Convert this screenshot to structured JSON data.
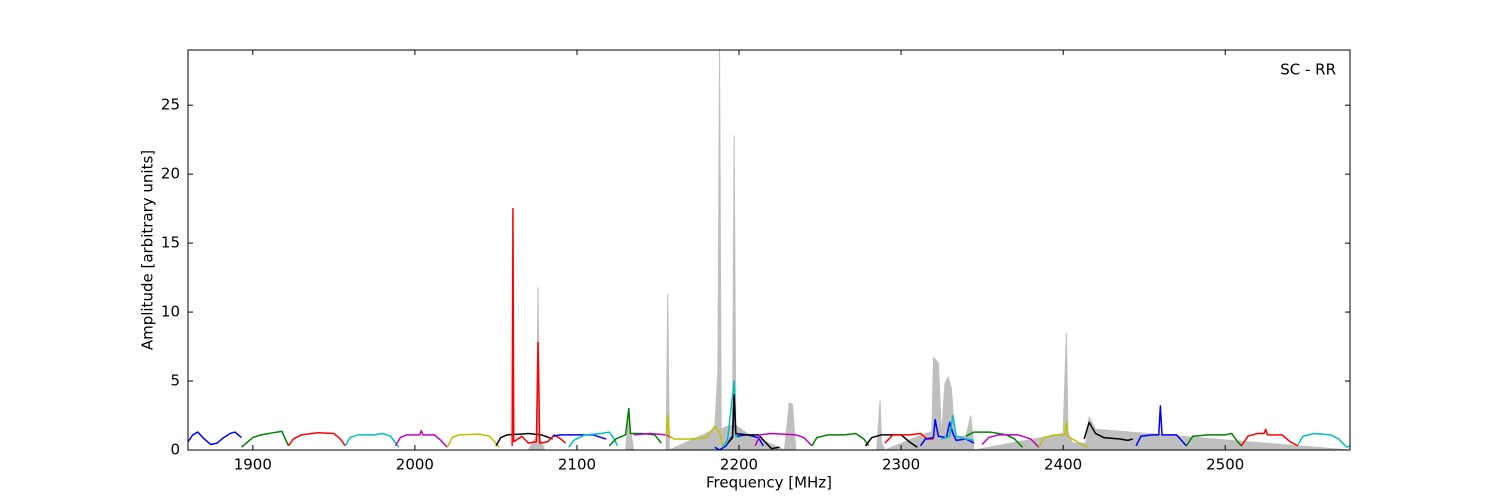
{
  "chart_data": {
    "type": "line",
    "annotation": "SC - RR",
    "xlabel": "Frequency [MHz]",
    "ylabel": "Amplitude [arbitrary units]",
    "xlim": [
      1860,
      2577
    ],
    "ylim": [
      0,
      29
    ],
    "xticks": [
      1900,
      2000,
      2100,
      2200,
      2300,
      2400,
      2500
    ],
    "yticks": [
      0,
      5,
      10,
      15,
      20,
      25
    ],
    "series": [
      {
        "color": "#bfbfbf",
        "fill": true,
        "x": [
          1860,
          2070,
          2075,
          2076,
          2077,
          2080,
          2130,
          2132,
          2133,
          2135,
          2155,
          2156,
          2157,
          2185,
          2187,
          2188,
          2189,
          2192,
          2196,
          2197,
          2198,
          2205,
          2228,
          2231,
          2233,
          2235,
          2285,
          2287,
          2288,
          2290,
          2315,
          2319,
          2320,
          2323,
          2325,
          2327,
          2329,
          2331,
          2333,
          2340,
          2343,
          2345,
          2400,
          2402,
          2403,
          2406,
          2414,
          2416,
          2420,
          2577
        ],
        "values": [
          0,
          0,
          1,
          11.8,
          1,
          0,
          0,
          2.5,
          1.5,
          0,
          0,
          11.3,
          0,
          1.5,
          5.8,
          29,
          1.5,
          1.7,
          1.8,
          22.8,
          1.8,
          1.2,
          0,
          3.4,
          3.3,
          0,
          0,
          3.6,
          0.5,
          0,
          1.2,
          1.3,
          6.7,
          6.3,
          1,
          4.8,
          5.3,
          4.5,
          1,
          1,
          2.5,
          0,
          1.2,
          8.5,
          1.2,
          0.5,
          0.5,
          2.4,
          1.5,
          0
        ]
      },
      {
        "color": "#0000ff",
        "x": [
          1860,
          1863,
          1866,
          1870,
          1874,
          1878,
          1882,
          1886,
          1889,
          1893
        ],
        "values": [
          0.6,
          1.1,
          1.3,
          0.8,
          0.4,
          0.5,
          0.9,
          1.2,
          1.3,
          0.9
        ]
      },
      {
        "color": "#008000",
        "x": [
          1893,
          1896,
          1900,
          1905,
          1915,
          1918,
          1920,
          1922
        ],
        "values": [
          0.2,
          0.5,
          0.9,
          1.1,
          1.3,
          1.35,
          0.8,
          0.3
        ]
      },
      {
        "color": "#ff0000",
        "x": [
          1922,
          1925,
          1930,
          1940,
          1950,
          1954,
          1957
        ],
        "values": [
          0.3,
          0.8,
          1.1,
          1.25,
          1.2,
          0.8,
          0.3
        ]
      },
      {
        "color": "#00bfbf",
        "x": [
          1957,
          1960,
          1965,
          1975,
          1980,
          1985,
          1990
        ],
        "values": [
          0.3,
          0.9,
          1.1,
          1.1,
          1.2,
          1.0,
          0.2
        ]
      },
      {
        "color": "#bf00bf",
        "x": [
          1988,
          1991,
          1995,
          2003,
          2004,
          2005,
          2012,
          2016,
          2020
        ],
        "values": [
          0.3,
          0.9,
          1.1,
          1.1,
          1.4,
          1.1,
          1.1,
          0.7,
          0.2
        ]
      },
      {
        "color": "#bfbf00",
        "x": [
          2020,
          2023,
          2027,
          2040,
          2046,
          2050,
          2052
        ],
        "values": [
          0.2,
          0.9,
          1.1,
          1.15,
          1.0,
          0.5,
          0.2
        ]
      },
      {
        "color": "#000000",
        "x": [
          2050,
          2053,
          2057,
          2065,
          2070,
          2078,
          2085
        ],
        "values": [
          0.3,
          0.9,
          1.1,
          1.15,
          1.2,
          1.1,
          0.8
        ]
      },
      {
        "color": "#ff0000",
        "x": [
          2060,
          2060.5,
          2061,
          2066,
          2070,
          2075,
          2076,
          2077,
          2082,
          2086,
          2090,
          2093
        ],
        "values": [
          0.3,
          17.5,
          0.6,
          1.0,
          0.5,
          0.6,
          7.8,
          0.5,
          0.6,
          1.1,
          0.8,
          0.5
        ]
      },
      {
        "color": "#0000ff",
        "x": [
          2085,
          2090,
          2100,
          2110,
          2115,
          2118
        ],
        "values": [
          1.0,
          1.1,
          1.1,
          1.1,
          0.9,
          0.8
        ]
      },
      {
        "color": "#00bfbf",
        "x": [
          2095,
          2098,
          2105,
          2115,
          2120,
          2123,
          2125
        ],
        "values": [
          0.2,
          0.7,
          1.1,
          1.2,
          1.3,
          0.8,
          0.3
        ]
      },
      {
        "color": "#008000",
        "x": [
          2120,
          2124,
          2130,
          2132,
          2133,
          2140,
          2148,
          2152
        ],
        "values": [
          0.3,
          0.8,
          1.1,
          3.0,
          1.2,
          1.2,
          1.1,
          0.5
        ]
      },
      {
        "color": "#bf00bf",
        "x": [
          2135,
          2145,
          2155,
          2158
        ],
        "values": [
          1.1,
          1.2,
          1.1,
          0.9
        ]
      },
      {
        "color": "#bfbf00",
        "x": [
          2155,
          2156,
          2157,
          2160,
          2170,
          2180,
          2185,
          2188,
          2190
        ],
        "values": [
          1.0,
          2.5,
          1.0,
          0.8,
          0.8,
          0.9,
          1.7,
          1.3,
          0.3
        ]
      },
      {
        "color": "#0000ff",
        "x": [
          2185,
          2188,
          2192,
          2196,
          2197,
          2198,
          2205,
          2212,
          2215
        ],
        "values": [
          0.2,
          0,
          0.3,
          1.0,
          4.0,
          1.0,
          1.1,
          0.9,
          0.3
        ]
      },
      {
        "color": "#00bfbf",
        "x": [
          2190,
          2193,
          2197,
          2198,
          2200
        ],
        "values": [
          0.2,
          0.8,
          5.0,
          1.0,
          0.9
        ]
      },
      {
        "color": "#000000",
        "x": [
          2193,
          2196,
          2197,
          2198,
          2205,
          2212,
          2216,
          2220,
          2225
        ],
        "values": [
          0.5,
          0.9,
          4.0,
          1.2,
          1.1,
          1.1,
          0.6,
          0.1,
          0.2
        ]
      },
      {
        "color": "#bf00bf",
        "x": [
          2210,
          2213,
          2220,
          2235,
          2240,
          2245
        ],
        "values": [
          0.3,
          1.1,
          1.2,
          1.1,
          0.9,
          0.3
        ]
      },
      {
        "color": "#008000",
        "x": [
          2245,
          2248,
          2255,
          2265,
          2272,
          2277,
          2280
        ],
        "values": [
          0.3,
          0.9,
          1.1,
          1.1,
          1.2,
          0.8,
          0.3
        ]
      },
      {
        "color": "#000000",
        "x": [
          2278,
          2282,
          2288,
          2300,
          2305,
          2310
        ],
        "values": [
          0.3,
          0.9,
          1.1,
          1.1,
          0.6,
          0.2
        ]
      },
      {
        "color": "#ff0000",
        "x": [
          2290,
          2295,
          2305,
          2312,
          2316,
          2320
        ],
        "values": [
          0.5,
          1.1,
          1.1,
          1.2,
          0.8,
          0.8
        ]
      },
      {
        "color": "#0000ff",
        "x": [
          2312,
          2315,
          2320,
          2321,
          2323,
          2328,
          2330,
          2332,
          2334,
          2340,
          2345
        ],
        "values": [
          0.3,
          0.8,
          0.9,
          2.2,
          1.0,
          0.9,
          2.0,
          1.2,
          0.7,
          0.8,
          0.5
        ]
      },
      {
        "color": "#00bfbf",
        "x": [
          2325,
          2330,
          2332,
          2334,
          2340,
          2345
        ],
        "values": [
          0.8,
          1.0,
          2.5,
          1.0,
          0.8,
          0.7
        ]
      },
      {
        "color": "#008000",
        "x": [
          2340,
          2345,
          2355,
          2365,
          2370,
          2375
        ],
        "values": [
          1.0,
          1.3,
          1.3,
          1.1,
          0.8,
          0.2
        ]
      },
      {
        "color": "#bf00bf",
        "x": [
          2350,
          2354,
          2360,
          2372,
          2380,
          2385
        ],
        "values": [
          0.4,
          0.9,
          1.1,
          1.1,
          0.8,
          0.2
        ]
      },
      {
        "color": "#bfbf00",
        "x": [
          2385,
          2388,
          2395,
          2401,
          2402,
          2403,
          2410,
          2415
        ],
        "values": [
          0.2,
          0.9,
          1.1,
          1.1,
          2.0,
          1.0,
          0.5,
          0.2
        ]
      },
      {
        "color": "#000000",
        "x": [
          2413,
          2416,
          2420,
          2425,
          2435,
          2440,
          2443
        ],
        "values": [
          0.8,
          2.0,
          1.2,
          0.9,
          0.8,
          0.7,
          0.8
        ]
      },
      {
        "color": "#0000ff",
        "x": [
          2445,
          2448,
          2455,
          2459,
          2460,
          2461,
          2470,
          2473,
          2476
        ],
        "values": [
          0.3,
          1.0,
          1.1,
          1.1,
          3.2,
          1.1,
          1.1,
          0.7,
          0.3
        ]
      },
      {
        "color": "#008000",
        "x": [
          2476,
          2480,
          2490,
          2500,
          2504,
          2507,
          2510
        ],
        "values": [
          0.3,
          1.0,
          1.1,
          1.1,
          1.2,
          0.7,
          0.3
        ]
      },
      {
        "color": "#ff0000",
        "x": [
          2510,
          2514,
          2520,
          2524,
          2525,
          2526,
          2535,
          2540,
          2545
        ],
        "values": [
          0.3,
          1.0,
          1.2,
          1.2,
          1.5,
          1.1,
          1.1,
          0.6,
          0.3
        ]
      },
      {
        "color": "#00bfbf",
        "x": [
          2545,
          2548,
          2555,
          2565,
          2570,
          2575,
          2577
        ],
        "values": [
          0.4,
          1.0,
          1.2,
          1.1,
          0.8,
          0.2,
          0.3
        ]
      }
    ]
  }
}
